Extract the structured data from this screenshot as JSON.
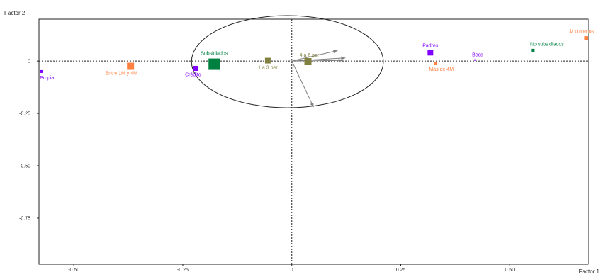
{
  "chart_data": {
    "type": "scatter",
    "xlabel": "Factor 1",
    "ylabel": "Factor 2",
    "xlim": [
      -0.58,
      0.68
    ],
    "ylim": [
      -0.97,
      0.2
    ],
    "x_ticks": [
      -0.5,
      -0.25,
      0,
      0.25,
      0.5
    ],
    "x_tick_labels": [
      "-0.50",
      "-0.25",
      "0",
      "0.25",
      "0.50"
    ],
    "y_ticks": [
      0,
      -0.25,
      -0.5,
      -0.75
    ],
    "y_tick_labels": [
      "0",
      "-0.25",
      "-0.50",
      "-0.75"
    ],
    "grid": false,
    "points": [
      {
        "label": "Propia",
        "x": -0.575,
        "y": -0.05,
        "size": 4,
        "color": "#8000ff"
      },
      {
        "label": "Entre 1M y 4M",
        "x": -0.37,
        "y": -0.025,
        "size": 10,
        "color": "#ff8040"
      },
      {
        "label": "Crédito",
        "x": -0.22,
        "y": -0.035,
        "size": 7,
        "color": "#8000ff"
      },
      {
        "label": "Subsidiados",
        "x": -0.178,
        "y": -0.015,
        "size": 16,
        "color": "#008040"
      },
      {
        "label": "1 a 3 per",
        "x": -0.055,
        "y": 0.002,
        "size": 8,
        "color": "#808040"
      },
      {
        "label": "4 a 6 per",
        "x": 0.037,
        "y": -0.003,
        "size": 10,
        "color": "#808040"
      },
      {
        "label": "Padres",
        "x": 0.318,
        "y": 0.04,
        "size": 8,
        "color": "#8000ff"
      },
      {
        "label": "Más de 4M",
        "x": 0.33,
        "y": -0.013,
        "size": 4,
        "color": "#ff8040"
      },
      {
        "label": "Beca",
        "x": 0.42,
        "y": 0.005,
        "size": 2,
        "color": "#8000ff"
      },
      {
        "label": "No subsidiados",
        "x": 0.553,
        "y": 0.05,
        "size": 5,
        "color": "#008040"
      },
      {
        "label": "1M o menos",
        "x": 0.675,
        "y": 0.11,
        "size": 5,
        "color": "#ff8040"
      }
    ],
    "arrows": [
      {
        "x": 0.105,
        "y": 0.05
      },
      {
        "x": 0.123,
        "y": 0.015
      },
      {
        "x": 0.117,
        "y": 0.003
      },
      {
        "x": 0.05,
        "y": -0.22
      }
    ],
    "ellipse": {
      "cx": -0.01,
      "cy": -0.003,
      "rx": 0.22,
      "ry": 0.22
    },
    "colors": {
      "axis": "#222222",
      "arrow": "#808080",
      "ellipse": "#222222"
    }
  }
}
